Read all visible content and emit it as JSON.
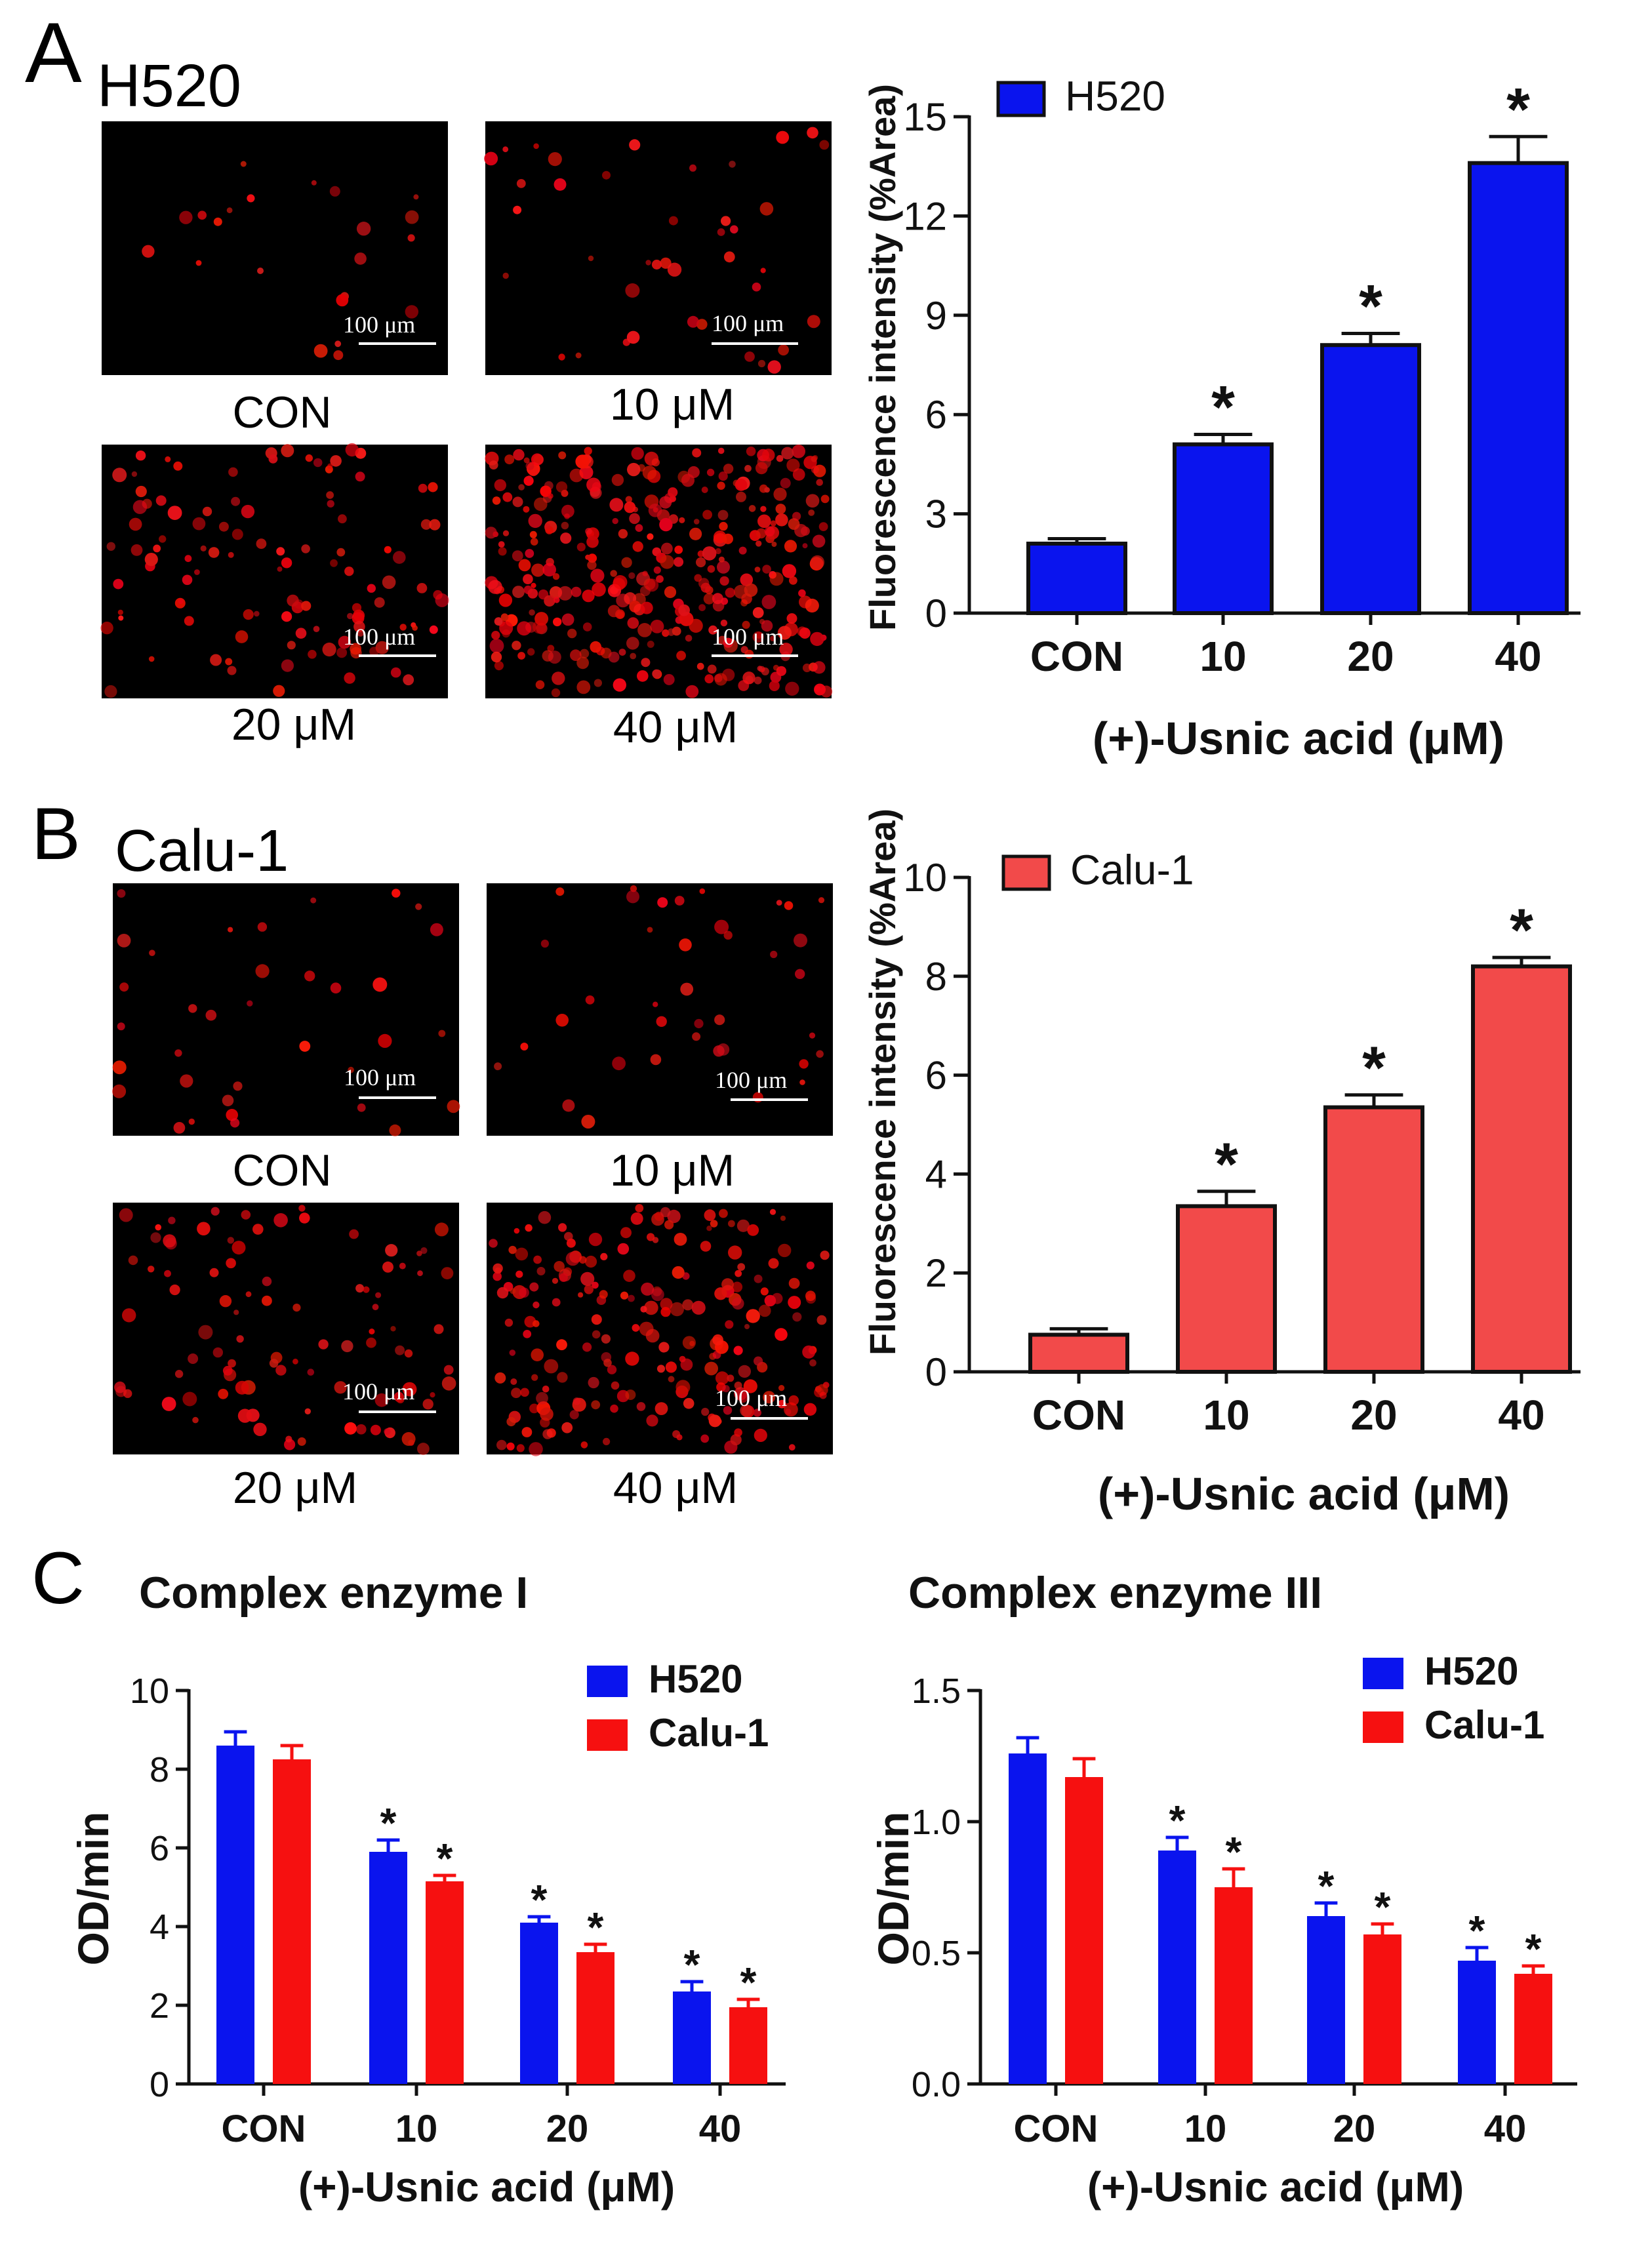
{
  "panels": {
    "A": {
      "letter": "A",
      "cell_line": "H520",
      "micrographs": [
        {
          "label": "CON",
          "scale_bar": "100 μm"
        },
        {
          "label": "10 μM",
          "scale_bar": "100 μm"
        },
        {
          "label": "20 μM",
          "scale_bar": "100 μm"
        },
        {
          "label": "40 μM",
          "scale_bar": "100 μm"
        }
      ]
    },
    "B": {
      "letter": "B",
      "cell_line": "Calu-1",
      "micrographs": [
        {
          "label": "CON",
          "scale_bar": "100 μm"
        },
        {
          "label": "10 μM",
          "scale_bar": "100 μm"
        },
        {
          "label": "20 μM",
          "scale_bar": "100 μm"
        },
        {
          "label": "40 μM",
          "scale_bar": "100 μm"
        }
      ]
    },
    "C": {
      "letter": "C"
    }
  },
  "colors": {
    "blue": "#0a14ee",
    "red_light": "#f24a4a",
    "red": "#f61010",
    "black": "#111111"
  },
  "chart_data": [
    {
      "id": "chartA",
      "type": "bar",
      "title": "",
      "legend": [
        "H520"
      ],
      "legend_position": "top-left",
      "categories": [
        "CON",
        "10",
        "20",
        "40"
      ],
      "series": [
        {
          "name": "H520",
          "values": [
            2.1,
            5.1,
            8.1,
            13.6
          ],
          "errors": [
            0.15,
            0.3,
            0.35,
            0.8
          ],
          "sig": [
            false,
            true,
            true,
            true
          ],
          "color": "#0a14ee"
        }
      ],
      "xlabel": "(+)-Usnic acid (μM)",
      "ylabel": "Fluorescence intensity (%Area)",
      "ylim": [
        0,
        15
      ],
      "yticks": [
        0,
        3,
        6,
        9,
        12,
        15
      ],
      "ytick_labels": [
        "0",
        "3",
        "6",
        "9",
        "12",
        "15"
      ],
      "sig_symbol": "*"
    },
    {
      "id": "chartB",
      "type": "bar",
      "title": "",
      "legend": [
        "Calu-1"
      ],
      "legend_position": "top-left",
      "categories": [
        "CON",
        "10",
        "20",
        "40"
      ],
      "series": [
        {
          "name": "Calu-1",
          "values": [
            0.75,
            3.35,
            5.35,
            8.2
          ],
          "errors": [
            0.12,
            0.3,
            0.25,
            0.18
          ],
          "sig": [
            false,
            true,
            true,
            true
          ],
          "color": "#f24a4a"
        }
      ],
      "xlabel": "(+)-Usnic acid (μM)",
      "ylabel": "Fluorescence intensity (%Area)",
      "ylim": [
        0,
        10
      ],
      "yticks": [
        0,
        2,
        4,
        6,
        8,
        10
      ],
      "ytick_labels": [
        "0",
        "2",
        "4",
        "6",
        "8",
        "10"
      ],
      "sig_symbol": "*"
    },
    {
      "id": "chartC1",
      "type": "bar",
      "title": "Complex enzyme I",
      "legend": [
        "H520",
        "Calu-1"
      ],
      "legend_position": "top-right",
      "categories": [
        "CON",
        "10",
        "20",
        "40"
      ],
      "series": [
        {
          "name": "H520",
          "values": [
            8.6,
            5.9,
            4.1,
            2.35
          ],
          "errors": [
            0.35,
            0.3,
            0.15,
            0.25
          ],
          "sig": [
            false,
            true,
            true,
            true
          ],
          "color": "#0a14ee"
        },
        {
          "name": "Calu-1",
          "values": [
            8.25,
            5.15,
            3.35,
            1.95
          ],
          "errors": [
            0.35,
            0.15,
            0.2,
            0.2
          ],
          "sig": [
            false,
            true,
            true,
            true
          ],
          "color": "#f61010"
        }
      ],
      "xlabel": "(+)-Usnic acid (μM)",
      "ylabel": "OD/min",
      "ylim": [
        0,
        10
      ],
      "yticks": [
        0,
        2,
        4,
        6,
        8,
        10
      ],
      "ytick_labels": [
        "0",
        "2",
        "4",
        "6",
        "8",
        "10"
      ],
      "sig_symbol": "*"
    },
    {
      "id": "chartC3",
      "type": "bar",
      "title": "Complex enzyme III",
      "legend": [
        "H520",
        "Calu-1"
      ],
      "legend_position": "top-right",
      "categories": [
        "CON",
        "10",
        "20",
        "40"
      ],
      "series": [
        {
          "name": "H520",
          "values": [
            1.26,
            0.89,
            0.64,
            0.47
          ],
          "errors": [
            0.06,
            0.05,
            0.05,
            0.05
          ],
          "sig": [
            false,
            true,
            true,
            true
          ],
          "color": "#0a14ee"
        },
        {
          "name": "Calu-1",
          "values": [
            1.17,
            0.75,
            0.57,
            0.42
          ],
          "errors": [
            0.07,
            0.07,
            0.04,
            0.03
          ],
          "sig": [
            false,
            true,
            true,
            true
          ],
          "color": "#f61010"
        }
      ],
      "xlabel": "(+)-Usnic acid (μM)",
      "ylabel": "OD/min",
      "ylim": [
        0,
        1.5
      ],
      "yticks": [
        0,
        0.5,
        1.0,
        1.5
      ],
      "ytick_labels": [
        "0.0",
        "0.5",
        "1.0",
        "1.5"
      ],
      "sig_symbol": "*"
    }
  ]
}
